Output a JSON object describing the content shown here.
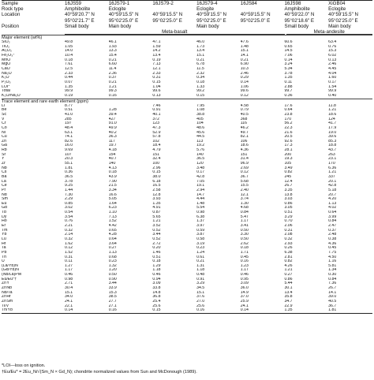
{
  "header": {
    "sample_label": "Sample",
    "rock_type_label": "Rock type",
    "location_label": "Location",
    "position_label": "Position",
    "samples": [
      "16JS59",
      "16JS79-1",
      "16JS79-2",
      "16JS79-4",
      "16JS84",
      "16JS98",
      "XiGB04"
    ],
    "rock_types": [
      "Amphibolite",
      "Eclogite",
      "",
      "Eclogite",
      "",
      "Amphibolite",
      "Eclogite"
    ],
    "location_n": [
      "40°59'20.7\" N",
      "40°59'15.5\" N",
      "40°59'15.5\" N",
      "40°59'15.5\" N",
      "40°59'15.5\" N",
      "40°59'22.0\" N",
      "40°59'15.5\" N"
    ],
    "location_e": [
      "95°02'21.7\" E",
      "95°02'25.0\" E",
      "95°02'25.0\" E",
      "95°02'25.0\" E",
      "95°02'25.0\" E",
      "95°02'18.6\" E",
      "95°02'25.0\" E"
    ],
    "positions": [
      "Small body",
      "Main body",
      "",
      "Main body",
      "",
      "Small body",
      "Main body"
    ],
    "group_basalt": "Meta-basalt",
    "group_andesite": "Meta-andesite"
  },
  "sections": [
    {
      "title": "Major element (wt%)",
      "rows": [
        {
          "label": "SiO₂",
          "values": [
            "49.8",
            "46.1",
            "47.1",
            "46.0",
            "47.6",
            "60.6",
            "63.4"
          ]
        },
        {
          "label": "TiO₂",
          "values": [
            "1.05",
            "1.93",
            "1.59",
            "1.73",
            "1.48",
            "0.65",
            "0.76"
          ]
        },
        {
          "label": "Al₂O₃",
          "values": [
            "14.0",
            "13.3",
            "14.2",
            "13.4",
            "15.1",
            "14.5",
            "15.3"
          ]
        },
        {
          "label": "Fe₂O₃ᵀ",
          "values": [
            "10.4",
            "15.4",
            "13.4",
            "15.1",
            "14.1",
            "7.06",
            "6.02"
          ]
        },
        {
          "label": "MnO",
          "values": [
            "0.18",
            "0.21",
            "0.19",
            "0.21",
            "0.21",
            "0.14",
            "0.13"
          ]
        },
        {
          "label": "MgO",
          "values": [
            "7.61",
            "6.60",
            "7.13",
            "6.78",
            "6.90",
            "3.24",
            "2.46"
          ]
        },
        {
          "label": "CaO",
          "values": [
            "12.5",
            "11.4",
            "12.1",
            "11.5",
            "10.3",
            "5.34",
            "4.45"
          ]
        },
        {
          "label": "Na₂O",
          "values": [
            "2.33",
            "2.36",
            "2.33",
            "2.32",
            "2.46",
            "3.78",
            "4.04"
          ]
        },
        {
          "label": "K₂O",
          "values": [
            "0.44",
            "0.37",
            "0.31",
            "0.34",
            "0.29",
            "1.35",
            "1.60"
          ]
        },
        {
          "label": "P₂O₅",
          "values": [
            "0.07",
            "0.21",
            "0.15",
            "0.18",
            "0.14",
            "0.11",
            "0.17"
          ]
        },
        {
          "label": "LOI*",
          "values": [
            "1.35",
            "1.21",
            "1.04",
            "1.33",
            "1.06",
            "2.88",
            "1.54"
          ]
        },
        {
          "label": "Total",
          "values": [
            "99.9",
            "99.3",
            "99.6",
            "99.2",
            "99.6",
            "99.7",
            "99.9"
          ]
        },
        {
          "label": "K₂O/Na₂O",
          "values": [
            "0.19",
            "0.16",
            "0.13",
            "0.15",
            "0.12",
            "0.36",
            "0.40"
          ]
        }
      ]
    },
    {
      "title": "Trace element and rare earth element (ppm)",
      "rows": [
        {
          "label": "Li",
          "values": [
            "8.77",
            "",
            "7.46",
            "7.95",
            "4.58",
            "17.6",
            "11.8"
          ]
        },
        {
          "label": "Be",
          "values": [
            "0.51",
            "1.28",
            "0.91",
            "1.08",
            "0.79",
            "0.64",
            "1.21"
          ]
        },
        {
          "label": "Sc",
          "values": [
            "41.0",
            "39.4",
            "40.1",
            "38.8",
            "40.5",
            "23.8",
            "18.6"
          ]
        },
        {
          "label": "V",
          "values": [
            "285",
            "427",
            "372",
            "405",
            "368",
            "170",
            "124"
          ]
        },
        {
          "label": "Cr",
          "values": [
            "197",
            "91.0",
            "123",
            "104",
            "116",
            "56.2",
            "41.7"
          ]
        },
        {
          "label": "Co",
          "values": [
            "48.4",
            "49.9",
            "47.3",
            "48.6",
            "46.2",
            "22.3",
            "17.9"
          ]
        },
        {
          "label": "Ni",
          "values": [
            "63.1",
            "40.2",
            "52.9",
            "45.6",
            "49.7",
            "21.6",
            "19.0"
          ]
        },
        {
          "label": "Cu",
          "values": [
            "74.1",
            "36.3",
            "57.8",
            "44.5",
            "82.1",
            "20.5",
            "39.6"
          ]
        },
        {
          "label": "Zn",
          "values": [
            "82.6",
            "117",
            "102",
            "113",
            "106",
            "92.6",
            "85.3"
          ]
        },
        {
          "label": "Ga",
          "values": [
            "16.0",
            "19.7",
            "18.4",
            "19.2",
            "18.6",
            "17.3",
            "18.8"
          ]
        },
        {
          "label": "Rb",
          "values": [
            "9.69",
            "4.18",
            "4.79",
            "5.76",
            "4.36",
            "28.1",
            "43.7"
          ]
        },
        {
          "label": "Sr",
          "values": [
            "107",
            "154",
            "151",
            "140",
            "151",
            "200",
            "263"
          ]
        },
        {
          "label": "Y",
          "values": [
            "20.3",
            "40.7",
            "32.4",
            "36.5",
            "31.4",
            "19.3",
            "23.1"
          ]
        },
        {
          "label": "Zr",
          "values": [
            "55.1",
            "140",
            "100",
            "120",
            "96.9",
            "105",
            "170"
          ]
        },
        {
          "label": "Nb",
          "values": [
            "1.81",
            "4.13",
            "2.96",
            "3.48",
            "2.69",
            "3.49",
            "6.36"
          ]
        },
        {
          "label": "Cs",
          "values": [
            "0.36",
            "0.18",
            "0.15",
            "0.17",
            "0.12",
            "0.82",
            "1.21"
          ]
        },
        {
          "label": "Ba",
          "values": [
            "36.5",
            "43.9",
            "38.0",
            "42.8",
            "36.7",
            "245",
            "337"
          ]
        },
        {
          "label": "La",
          "values": [
            "3.78",
            "7.90",
            "6.18",
            "7.05",
            "5.68",
            "12.4",
            "20.1"
          ]
        },
        {
          "label": "Ce",
          "values": [
            "9.25",
            "21.5",
            "16.5",
            "19.1",
            "15.5",
            "26.7",
            "42.8"
          ]
        },
        {
          "label": "Pr",
          "values": [
            "1.44",
            "3.34",
            "2.58",
            "2.94",
            "2.40",
            "3.35",
            "5.18"
          ]
        },
        {
          "label": "Nd",
          "values": [
            "7.30",
            "16.6",
            "12.8",
            "14.7",
            "12.1",
            "13.8",
            "20.7"
          ]
        },
        {
          "label": "Sm",
          "values": [
            "2.29",
            "5.05",
            "3.93",
            "4.44",
            "3.74",
            "3.03",
            "4.20"
          ]
        },
        {
          "label": "Eu",
          "values": [
            "0.85",
            "1.64",
            "1.35",
            "1.48",
            "1.30",
            "0.86",
            "1.13"
          ]
        },
        {
          "label": "Gd",
          "values": [
            "3.02",
            "6.23",
            "4.91",
            "5.54",
            "4.68",
            "3.05",
            "4.02"
          ]
        },
        {
          "label": "Tb",
          "values": [
            "0.54",
            "1.10",
            "0.87",
            "0.98",
            "0.84",
            "0.51",
            "0.64"
          ]
        },
        {
          "label": "Dy",
          "values": [
            "3.54",
            "7.13",
            "5.65",
            "6.38",
            "5.47",
            "3.29",
            "3.99"
          ]
        },
        {
          "label": "Ho",
          "values": [
            "0.76",
            "1.52",
            "1.21",
            "1.37",
            "1.17",
            "0.70",
            "0.84"
          ]
        },
        {
          "label": "Er",
          "values": [
            "2.21",
            "4.42",
            "3.52",
            "3.97",
            "3.41",
            "2.06",
            "2.47"
          ]
        },
        {
          "label": "Tm",
          "values": [
            "0.32",
            "0.65",
            "0.52",
            "0.59",
            "0.50",
            "0.31",
            "0.37"
          ]
        },
        {
          "label": "Yb",
          "values": [
            "2.14",
            "4.28",
            "3.44",
            "3.87",
            "3.30",
            "2.08",
            "2.48"
          ]
        },
        {
          "label": "Lu",
          "values": [
            "0.32",
            "0.64",
            "0.52",
            "0.58",
            "0.50",
            "0.32",
            "0.38"
          ]
        },
        {
          "label": "Hf",
          "values": [
            "1.62",
            "3.64",
            "2.72",
            "3.19",
            "2.62",
            "2.93",
            "4.36"
          ]
        },
        {
          "label": "Ta",
          "values": [
            "0.12",
            "0.27",
            "0.20",
            "0.23",
            "0.18",
            "0.26",
            "0.45"
          ]
        },
        {
          "label": "Pb",
          "values": [
            "1.52",
            "1.13",
            "1.46",
            "1.24",
            "1.71",
            "6.38",
            "7.75"
          ]
        },
        {
          "label": "Th",
          "values": [
            "0.31",
            "0.68",
            "0.51",
            "0.61",
            "0.45",
            "2.81",
            "4.50"
          ]
        },
        {
          "label": "U",
          "values": [
            "0.11",
            "0.23",
            "0.18",
            "0.21",
            "0.16",
            "0.82",
            "1.16"
          ]
        },
        {
          "label": "(La/Yb)N",
          "values": [
            "1.27",
            "1.32",
            "1.29",
            "1.31",
            "1.23",
            "4.26",
            "5.81"
          ]
        },
        {
          "label": "(Gd/Yb)N",
          "values": [
            "1.17",
            "1.20",
            "1.18",
            "1.18",
            "1.17",
            "1.21",
            "1.34"
          ]
        },
        {
          "label": "(Nb/La)PM",
          "values": [
            "0.46",
            "0.50",
            "0.46",
            "0.48",
            "0.46",
            "0.27",
            "0.30"
          ]
        },
        {
          "label": "Eu/Eu*†",
          "values": [
            "0.98",
            "0.90",
            "0.94",
            "0.91",
            "0.95",
            "0.86",
            "0.84"
          ]
        },
        {
          "label": "Zr/Y",
          "values": [
            "2.71",
            "3.44",
            "3.09",
            "3.29",
            "3.09",
            "5.44",
            "7.36"
          ]
        },
        {
          "label": "Zr/Nb",
          "values": [
            "30.4",
            "33.9",
            "33.8",
            "34.5",
            "36.0",
            "30.1",
            "26.7"
          ]
        },
        {
          "label": "Nb/Ta",
          "values": [
            "15.1",
            "15.3",
            "14.8",
            "15.1",
            "14.9",
            "13.4",
            "14.1"
          ]
        },
        {
          "label": "Zr/Hf",
          "values": [
            "34.0",
            "38.5",
            "36.8",
            "37.6",
            "37.0",
            "35.8",
            "39.0"
          ]
        },
        {
          "label": "Zr/Sm",
          "values": [
            "24.1",
            "27.7",
            "25.4",
            "27.0",
            "25.9",
            "34.7",
            "40.5"
          ]
        },
        {
          "label": "Ti/V",
          "values": [
            "22.1",
            "27.1",
            "25.6",
            "25.6",
            "24.1",
            "22.9",
            "36.7"
          ]
        },
        {
          "label": "Th/Yb",
          "values": [
            "0.14",
            "0.16",
            "0.15",
            "0.16",
            "0.14",
            "1.35",
            "1.81"
          ]
        }
      ]
    }
  ],
  "footnotes": [
    "*LOI—loss on ignition.",
    "†Eu/Eu* = 2Eu_N/√(Sm_N × Gd_N); chondrite normalized values from Sun and McDonough (1989)."
  ]
}
